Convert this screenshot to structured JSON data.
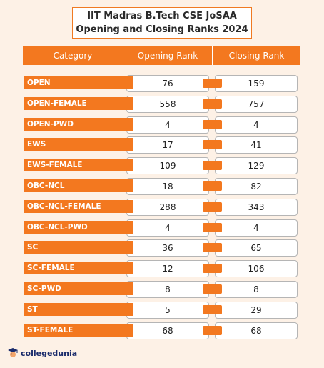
{
  "title": {
    "line1": "IIT Madras B.Tech CSE JoSAA",
    "line2": "Opening and Closing Ranks 2024"
  },
  "headers": {
    "category": "Category",
    "opening": "Opening Rank",
    "closing": "Closing Rank"
  },
  "rows": [
    {
      "category": "OPEN",
      "opening": "76",
      "closing": "159"
    },
    {
      "category": "OPEN-FEMALE",
      "opening": "558",
      "closing": "757"
    },
    {
      "category": "OPEN-PWD",
      "opening": "4",
      "closing": "4"
    },
    {
      "category": "EWS",
      "opening": "17",
      "closing": "41"
    },
    {
      "category": "EWS-FEMALE",
      "opening": "109",
      "closing": "129"
    },
    {
      "category": "OBC-NCL",
      "opening": "18",
      "closing": "82"
    },
    {
      "category": "OBC-NCL-FEMALE",
      "opening": "288",
      "closing": "343"
    },
    {
      "category": "OBC-NCL-PWD",
      "opening": "4",
      "closing": "4"
    },
    {
      "category": "SC",
      "opening": "36",
      "closing": "65"
    },
    {
      "category": "SC-FEMALE",
      "opening": "12",
      "closing": "106"
    },
    {
      "category": "SC-PWD",
      "opening": "8",
      "closing": "8"
    },
    {
      "category": "ST",
      "opening": "5",
      "closing": "29"
    },
    {
      "category": "ST-FEMALE",
      "opening": "68",
      "closing": "68"
    }
  ],
  "logo": {
    "text": "collegedunia",
    "icon": "graduate-mascot-icon"
  },
  "colors": {
    "accent": "#f3781f",
    "background": "#fdf1e6",
    "logo_text": "#1a2b6b"
  }
}
